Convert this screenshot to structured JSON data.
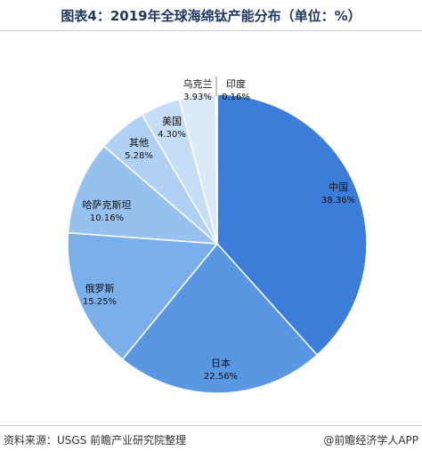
{
  "title": "图表4：2019年全球海绵钛产能分布（单位：%）",
  "source": "资料来源：USGS 前瞻产业研究院整理",
  "credit": "@前瞻经济学人APP",
  "chart_data": {
    "type": "pie",
    "unit": "%",
    "slices": [
      {
        "label": "中国",
        "value": 38.36,
        "display": "38.36%",
        "color": "#3b7dd8"
      },
      {
        "label": "日本",
        "value": 22.56,
        "display": "22.56%",
        "color": "#5a97e3"
      },
      {
        "label": "俄罗斯",
        "value": 15.25,
        "display": "15.25%",
        "color": "#7aafeb"
      },
      {
        "label": "哈萨克斯坦",
        "value": 10.16,
        "display": "10.16%",
        "color": "#97c2ef"
      },
      {
        "label": "其他",
        "value": 5.28,
        "display": "5.28%",
        "color": "#b0d1f3"
      },
      {
        "label": "美国",
        "value": 4.3,
        "display": "4.30%",
        "color": "#c6ddf6"
      },
      {
        "label": "乌克兰",
        "value": 3.93,
        "display": "3.93%",
        "color": "#dbe9f9"
      },
      {
        "label": "印度",
        "value": 0.16,
        "display": "0.16%",
        "color": "#e9f1fb"
      }
    ]
  }
}
